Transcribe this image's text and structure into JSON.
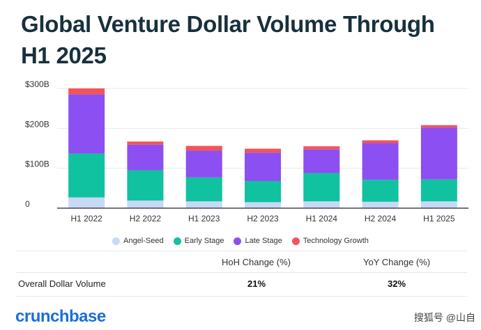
{
  "title": "Global Venture Dollar Volume Through H1 2025",
  "chart_data": {
    "type": "bar",
    "stacked": true,
    "categories": [
      "H1 2022",
      "H2 2022",
      "H1 2023",
      "H2 2023",
      "H1 2024",
      "H2 2024",
      "H1 2025"
    ],
    "series": [
      {
        "name": "Angel-Seed",
        "color": "#c7d9f5",
        "values": [
          27,
          19,
          17,
          15,
          17,
          16,
          17
        ]
      },
      {
        "name": "Early Stage",
        "color": "#10c29f",
        "values": [
          110,
          76,
          60,
          53,
          71,
          55,
          55
        ]
      },
      {
        "name": "Late Stage",
        "color": "#8c4ff2",
        "values": [
          148,
          64,
          67,
          71,
          59,
          92,
          130
        ]
      },
      {
        "name": "Technology Growth",
        "color": "#f2545b",
        "values": [
          15,
          8,
          12,
          10,
          8,
          7,
          6
        ]
      }
    ],
    "y_ticks": [
      {
        "value": 0,
        "label": "0"
      },
      {
        "value": 100,
        "label": "$100B"
      },
      {
        "value": 200,
        "label": "$200B"
      },
      {
        "value": 300,
        "label": "$300B"
      }
    ],
    "ylim": [
      0,
      300
    ],
    "grid": true,
    "legend": "bottom"
  },
  "table": {
    "headers": [
      "HoH Change (%)",
      "YoY Change (%)"
    ],
    "row_label": "Overall Dollar Volume",
    "values": [
      "21%",
      "32%"
    ]
  },
  "logo": "crunchbase",
  "watermark": "搜狐号 @山自"
}
